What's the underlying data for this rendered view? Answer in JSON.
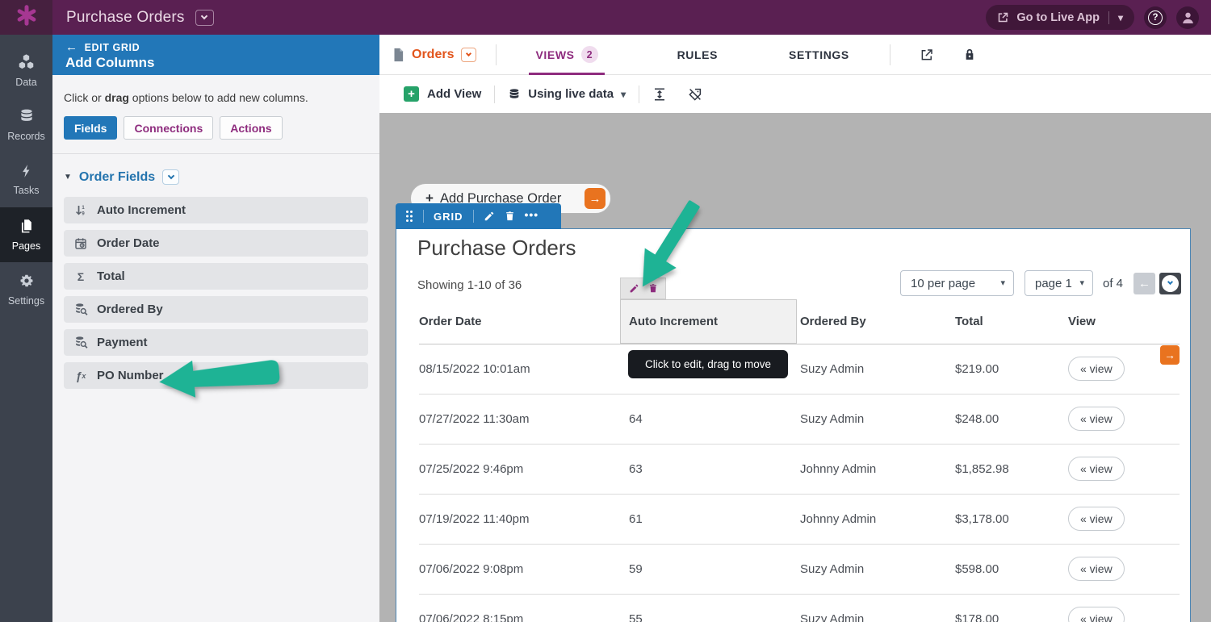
{
  "topbar": {
    "title": "Purchase Orders",
    "go_live_label": "Go to Live App",
    "help_label": "?"
  },
  "sidebar": {
    "items": [
      {
        "label": "Data",
        "icon": "cubes-icon",
        "active": false
      },
      {
        "label": "Records",
        "icon": "database-icon",
        "active": false
      },
      {
        "label": "Tasks",
        "icon": "lightning-icon",
        "active": false
      },
      {
        "label": "Pages",
        "icon": "pages-icon",
        "active": true
      },
      {
        "label": "Settings",
        "icon": "gear-icon",
        "active": false
      }
    ]
  },
  "panel": {
    "back_label": "EDIT GRID",
    "title": "Add Columns",
    "intro": {
      "pre": "Click or ",
      "bold": "drag",
      "post": " options below to add new columns."
    },
    "buttons": [
      {
        "label": "Fields",
        "active": true
      },
      {
        "label": "Connections",
        "active": false
      },
      {
        "label": "Actions",
        "active": false
      }
    ],
    "section_title": "Order Fields",
    "fields": [
      {
        "label": "Auto Increment",
        "icon": "auto-increment-icon"
      },
      {
        "label": "Order Date",
        "icon": "calendar-icon"
      },
      {
        "label": "Total",
        "icon": "sum-icon",
        "glyph": "Σ"
      },
      {
        "label": "Ordered By",
        "icon": "connection-search-icon"
      },
      {
        "label": "Payment",
        "icon": "connection-search-icon"
      },
      {
        "label": "PO Number",
        "icon": "formula-icon",
        "glyph": "ƒx"
      }
    ]
  },
  "main": {
    "object_tab": "Orders",
    "tabs": [
      {
        "label": "VIEWS",
        "badge": "2",
        "active": true
      },
      {
        "label": "RULES",
        "active": false
      },
      {
        "label": "SETTINGS",
        "active": false
      }
    ],
    "toolbar": {
      "add_view": "Add View",
      "live_data": "Using live data"
    },
    "preview": {
      "add_record_label": "Add Purchase Order",
      "grid_label": "GRID",
      "title": "Purchase Orders",
      "showing": "Showing 1-10 of 36",
      "tooltip": "Click to edit, drag to move",
      "pagination": {
        "per_page": "10 per page",
        "page": "page 1",
        "of_total": "of 4"
      },
      "table": {
        "columns": [
          "Order Date",
          "Auto Increment",
          "Ordered By",
          "Total",
          "View"
        ],
        "view_button_label": "« view",
        "rows": [
          {
            "order_date": "08/15/2022 10:01am",
            "auto_increment": "",
            "ordered_by": "Suzy Admin",
            "total": "$219.00"
          },
          {
            "order_date": "07/27/2022 11:30am",
            "auto_increment": "64",
            "ordered_by": "Suzy Admin",
            "total": "$248.00"
          },
          {
            "order_date": "07/25/2022 9:46pm",
            "auto_increment": "63",
            "ordered_by": "Johnny Admin",
            "total": "$1,852.98"
          },
          {
            "order_date": "07/19/2022 11:40pm",
            "auto_increment": "61",
            "ordered_by": "Johnny Admin",
            "total": "$3,178.00"
          },
          {
            "order_date": "07/06/2022 9:08pm",
            "auto_increment": "59",
            "ordered_by": "Suzy Admin",
            "total": "$598.00"
          },
          {
            "order_date": "07/06/2022 8:15pm",
            "auto_increment": "55",
            "ordered_by": "Suzy Admin",
            "total": "$178.00"
          }
        ]
      }
    }
  },
  "colors": {
    "brand_plum": "#5a2052",
    "accent_blue": "#2277b8",
    "accent_magenta": "#8e2c7e",
    "accent_orange": "#e2551c",
    "accent_green": "#26a269",
    "annotation_teal": "#1eb395"
  }
}
